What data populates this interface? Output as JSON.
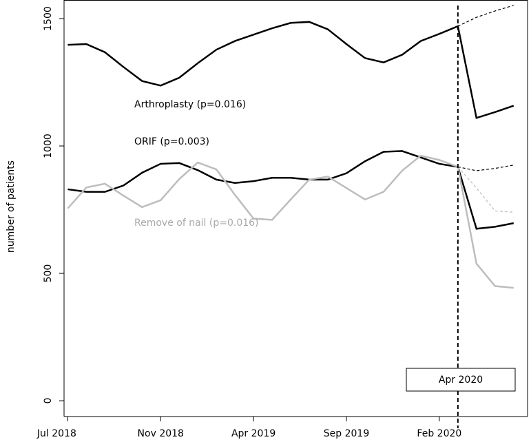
{
  "chart_data": {
    "type": "line",
    "ylabel": "number of patients",
    "x": [
      0,
      1,
      2,
      3,
      4,
      5,
      6,
      7,
      8,
      9,
      10,
      11,
      12,
      13,
      14,
      15,
      16,
      17,
      18,
      19,
      20,
      21,
      22,
      23,
      24
    ],
    "xlim": [
      -0.2,
      24.75
    ],
    "xticks": [
      {
        "value": 0,
        "label": "Jul 2018"
      },
      {
        "value": 5,
        "label": "Nov 2018"
      },
      {
        "value": 10,
        "label": "Apr 2019"
      },
      {
        "value": 15,
        "label": "Sep 2019"
      },
      {
        "value": 20,
        "label": "Feb 2020"
      }
    ],
    "ylim": [
      -62,
      1573
    ],
    "yticks": [
      0,
      500,
      1000,
      1500
    ],
    "vline": {
      "x": 21,
      "label": "Apr 2020"
    },
    "series": [
      {
        "color": "#000000",
        "dash": false,
        "values": [
          1397,
          1400,
          1368,
          1310,
          1255,
          1237,
          1268,
          1325,
          1378,
          1412,
          1437,
          1462,
          1483,
          1487,
          1458,
          1400,
          1345,
          1328,
          1358,
          1412,
          1440,
          1470,
          1110,
          1133,
          1158
        ]
      },
      {
        "color": "#000000",
        "dash": true,
        "values": [
          null,
          null,
          null,
          null,
          null,
          null,
          null,
          null,
          null,
          null,
          null,
          null,
          null,
          null,
          null,
          null,
          null,
          null,
          null,
          null,
          null,
          1470,
          1505,
          1530,
          1552
        ]
      },
      {
        "color": "#000000",
        "dash": false,
        "values": [
          830,
          820,
          820,
          845,
          895,
          930,
          933,
          905,
          868,
          855,
          862,
          875,
          875,
          868,
          868,
          893,
          940,
          977,
          980,
          955,
          930,
          918,
          675,
          683,
          697
        ]
      },
      {
        "color": "#000000",
        "dash": true,
        "values": [
          null,
          null,
          null,
          null,
          null,
          null,
          null,
          null,
          null,
          null,
          null,
          null,
          null,
          null,
          null,
          null,
          null,
          null,
          null,
          null,
          null,
          918,
          903,
          912,
          925
        ]
      },
      {
        "color": "#bdbdbd",
        "dash": false,
        "values": [
          755,
          837,
          852,
          805,
          760,
          787,
          870,
          935,
          908,
          808,
          715,
          710,
          790,
          868,
          880,
          835,
          790,
          820,
          903,
          962,
          945,
          918,
          538,
          450,
          443
        ]
      },
      {
        "color": "#bdbdbd",
        "dash": true,
        "values": [
          null,
          null,
          null,
          null,
          null,
          null,
          null,
          null,
          null,
          null,
          null,
          null,
          null,
          null,
          null,
          null,
          null,
          null,
          null,
          null,
          null,
          918,
          835,
          745,
          740
        ]
      }
    ],
    "annotations": [
      {
        "text": "Arthroplasty (p=0.016)",
        "color": "#000000"
      },
      {
        "text": "ORIF (p=0.003)",
        "color": "#000000"
      },
      {
        "text": "Remove of nail (p=0.016)",
        "color": "#a8a8a8"
      }
    ]
  }
}
